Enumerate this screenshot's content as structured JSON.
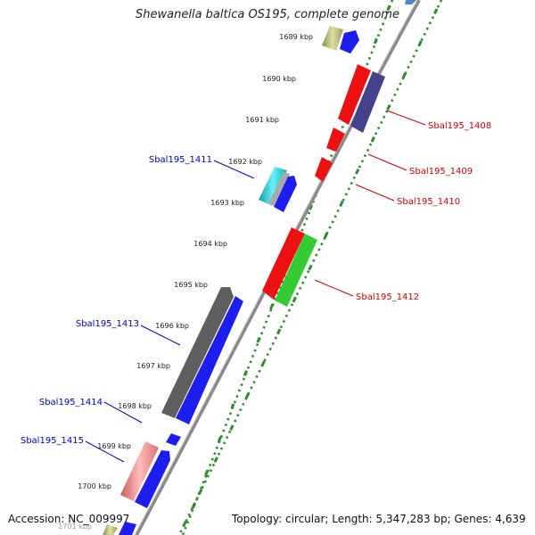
{
  "title": "Shewanella baltica OS195, complete genome",
  "accession_text": "Accession: NC_009997",
  "summary_text": "Topology: circular; Length: 5,347,283 bp; Genes: 4,639",
  "colors": {
    "backbone": "#808080",
    "tick_dots": "#2e8b2e",
    "forward_label": "#0000c8",
    "reverse_label": "#d40000"
  },
  "kbp_ticks": [
    {
      "label": "1689 kbp"
    },
    {
      "label": "1690 kbp"
    },
    {
      "label": "1691 kbp"
    },
    {
      "label": "1692 kbp"
    },
    {
      "label": "1693 kbp"
    },
    {
      "label": "1694 kbp"
    },
    {
      "label": "1695 kbp"
    },
    {
      "label": "1696 kbp"
    },
    {
      "label": "1697 kbp"
    },
    {
      "label": "1698 kbp"
    },
    {
      "label": "1699 kbp"
    },
    {
      "label": "1700 kbp"
    },
    {
      "label": "1701 kbp"
    }
  ],
  "gene_labels": {
    "forward": [
      {
        "text": "Sbal195_1411"
      },
      {
        "text": "Sbal195_1413"
      },
      {
        "text": "Sbal195_1414"
      },
      {
        "text": "Sbal195_1415"
      }
    ],
    "reverse": [
      {
        "text": "Sbal195_1408"
      },
      {
        "text": "Sbal195_1409"
      },
      {
        "text": "Sbal195_1410"
      },
      {
        "text": "Sbal195_1412"
      }
    ]
  }
}
